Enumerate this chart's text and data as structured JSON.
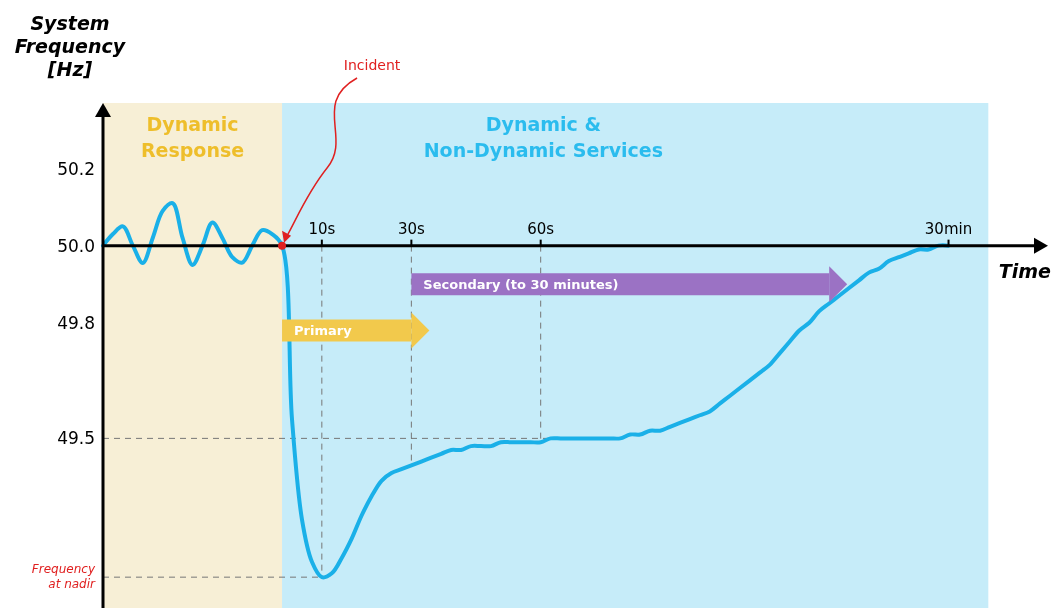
{
  "chart_data": {
    "type": "line",
    "ylabel": "System Frequency [Hz]",
    "xlabel": "Time",
    "categories": [
      null,
      null,
      null,
      null,
      null,
      null,
      null,
      null,
      null,
      null,
      null,
      null,
      null,
      null,
      null,
      null,
      null,
      null,
      null,
      null,
      null,
      null,
      "10s",
      null,
      null,
      null,
      null,
      null,
      null,
      null,
      null,
      "30s",
      null,
      null,
      null,
      null,
      null,
      null,
      null,
      null,
      null,
      null,
      null,
      null,
      "60s",
      null,
      null,
      null,
      null,
      null,
      null,
      null,
      null,
      null,
      null,
      null,
      null,
      null,
      null,
      null,
      null,
      null,
      null,
      null,
      null,
      null,
      null,
      null,
      null,
      null,
      null,
      null,
      null,
      null,
      null,
      null,
      null,
      null,
      null,
      null,
      null,
      null,
      null,
      null,
      null,
      "30min",
      null,
      null,
      null,
      null,
      null,
      null,
      null,
      null,
      null,
      null
    ],
    "ylim": [
      49.06,
      50.37
    ],
    "yticks": [
      {
        "value": 49.14,
        "label": "Frequency at nadir"
      },
      49.5,
      49.8,
      {
        "value": 50,
        "label": "50.0"
      },
      50.2
    ],
    "grid": false,
    "series": [
      {
        "color": "#1ab0e8",
        "values": [
          50.0,
          50.03,
          50.05,
          50.0,
          49.955,
          50.02,
          50.09,
          50.11,
          50.02,
          49.95,
          50.0,
          50.06,
          50.02,
          49.97,
          49.956,
          50.0,
          50.04,
          50.03,
          50.0,
          49.55,
          49.29,
          49.18,
          49.14,
          49.15,
          49.19,
          49.24,
          49.3,
          49.35,
          49.39,
          49.41,
          49.42,
          49.43,
          49.44,
          49.45,
          49.46,
          49.47,
          49.47,
          49.48,
          49.48,
          49.48,
          49.49,
          49.49,
          49.49,
          49.49,
          49.49,
          49.5,
          49.5,
          49.5,
          49.5,
          49.5,
          49.5,
          49.5,
          49.5,
          49.51,
          49.51,
          49.52,
          49.52,
          49.53,
          49.54,
          49.55,
          49.56,
          49.57,
          49.59,
          49.61,
          49.63,
          49.65,
          49.67,
          49.69,
          49.72,
          49.75,
          49.78,
          49.8,
          49.83,
          49.85,
          49.87,
          49.89,
          49.91,
          49.93,
          49.94,
          49.96,
          49.97,
          49.98,
          49.99,
          49.99,
          50.0,
          50.0,
          null,
          null,
          null,
          null,
          null,
          null,
          null,
          null,
          null,
          null
        ]
      },
      {
        "type": "line",
        "name": "Primary",
        "color": "#f2c94c",
        "values": [
          null,
          null,
          null,
          null,
          null,
          null,
          null,
          null,
          null,
          null,
          null,
          null,
          null,
          null,
          null,
          null,
          null,
          null,
          49.78,
          null,
          null,
          null,
          null,
          null,
          null,
          null,
          null,
          null,
          null,
          null,
          null,
          49.78,
          null,
          null,
          null,
          null,
          null,
          null,
          null,
          null,
          null,
          null,
          null,
          null,
          null,
          null,
          null,
          null,
          null,
          null,
          null,
          null,
          null,
          null,
          null,
          null,
          null,
          null,
          null,
          null,
          null,
          null,
          null,
          null,
          null,
          null,
          null,
          null,
          null,
          null,
          null,
          null,
          null,
          null,
          null,
          null,
          null,
          null,
          null,
          null,
          null,
          null,
          null,
          null,
          null,
          null,
          null,
          null,
          null,
          null,
          null,
          null,
          null,
          null,
          null,
          null
        ]
      },
      {
        "type": "line",
        "name": "Secondary (to 30 minutes)",
        "color": "#9b72c4",
        "values": [
          null,
          null,
          null,
          null,
          null,
          null,
          null,
          null,
          null,
          null,
          null,
          null,
          null,
          null,
          null,
          null,
          null,
          null,
          null,
          null,
          null,
          null,
          null,
          null,
          null,
          null,
          null,
          null,
          null,
          null,
          null,
          49.9,
          null,
          null,
          null,
          null,
          null,
          null,
          null,
          null,
          null,
          null,
          null,
          null,
          null,
          null,
          null,
          null,
          null,
          null,
          null,
          null,
          null,
          null,
          null,
          null,
          null,
          null,
          null,
          null,
          null,
          null,
          null,
          null,
          null,
          null,
          null,
          null,
          null,
          null,
          null,
          null,
          null,
          49.9,
          null,
          null,
          null,
          null,
          null,
          null,
          null,
          null,
          null,
          null,
          null,
          null,
          null,
          null,
          null,
          null,
          null,
          null,
          null,
          null,
          null,
          null
        ]
      }
    ],
    "ref_lines": [
      {
        "axis": "y",
        "value": 49.5,
        "color": "#777777",
        "line_style": "dashed"
      }
    ],
    "annotations": [
      "Dynamic Response",
      "Dynamic & Non-Dynamic Services",
      "Incident"
    ]
  }
}
